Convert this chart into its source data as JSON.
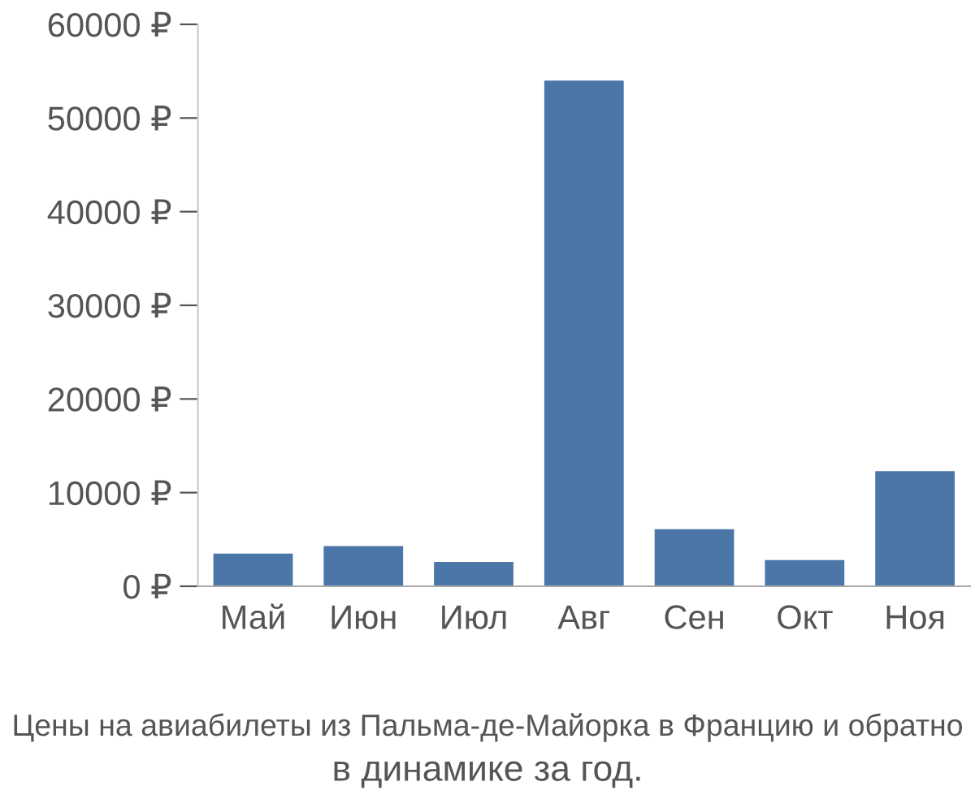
{
  "chart_data": {
    "type": "bar",
    "categories": [
      "Май",
      "Июн",
      "Июл",
      "Авг",
      "Сен",
      "Окт",
      "Ноя"
    ],
    "values": [
      3500,
      4300,
      2600,
      54000,
      6100,
      2800,
      12300
    ],
    "color": "#4a76a8",
    "ylim": [
      0,
      60000
    ],
    "yticks": [
      {
        "value": 0,
        "label": "0 ₽"
      },
      {
        "value": 10000,
        "label": "10000 ₽"
      },
      {
        "value": 20000,
        "label": "20000 ₽"
      },
      {
        "value": 30000,
        "label": "30000 ₽"
      },
      {
        "value": 40000,
        "label": "40000 ₽"
      },
      {
        "value": 50000,
        "label": "50000 ₽"
      },
      {
        "value": 60000,
        "label": "60000 ₽"
      }
    ],
    "annotations": [
      "Цены на авиабилеты из Пальма-де-Майорка в Францию и обратно",
      "в динамике за год."
    ]
  }
}
